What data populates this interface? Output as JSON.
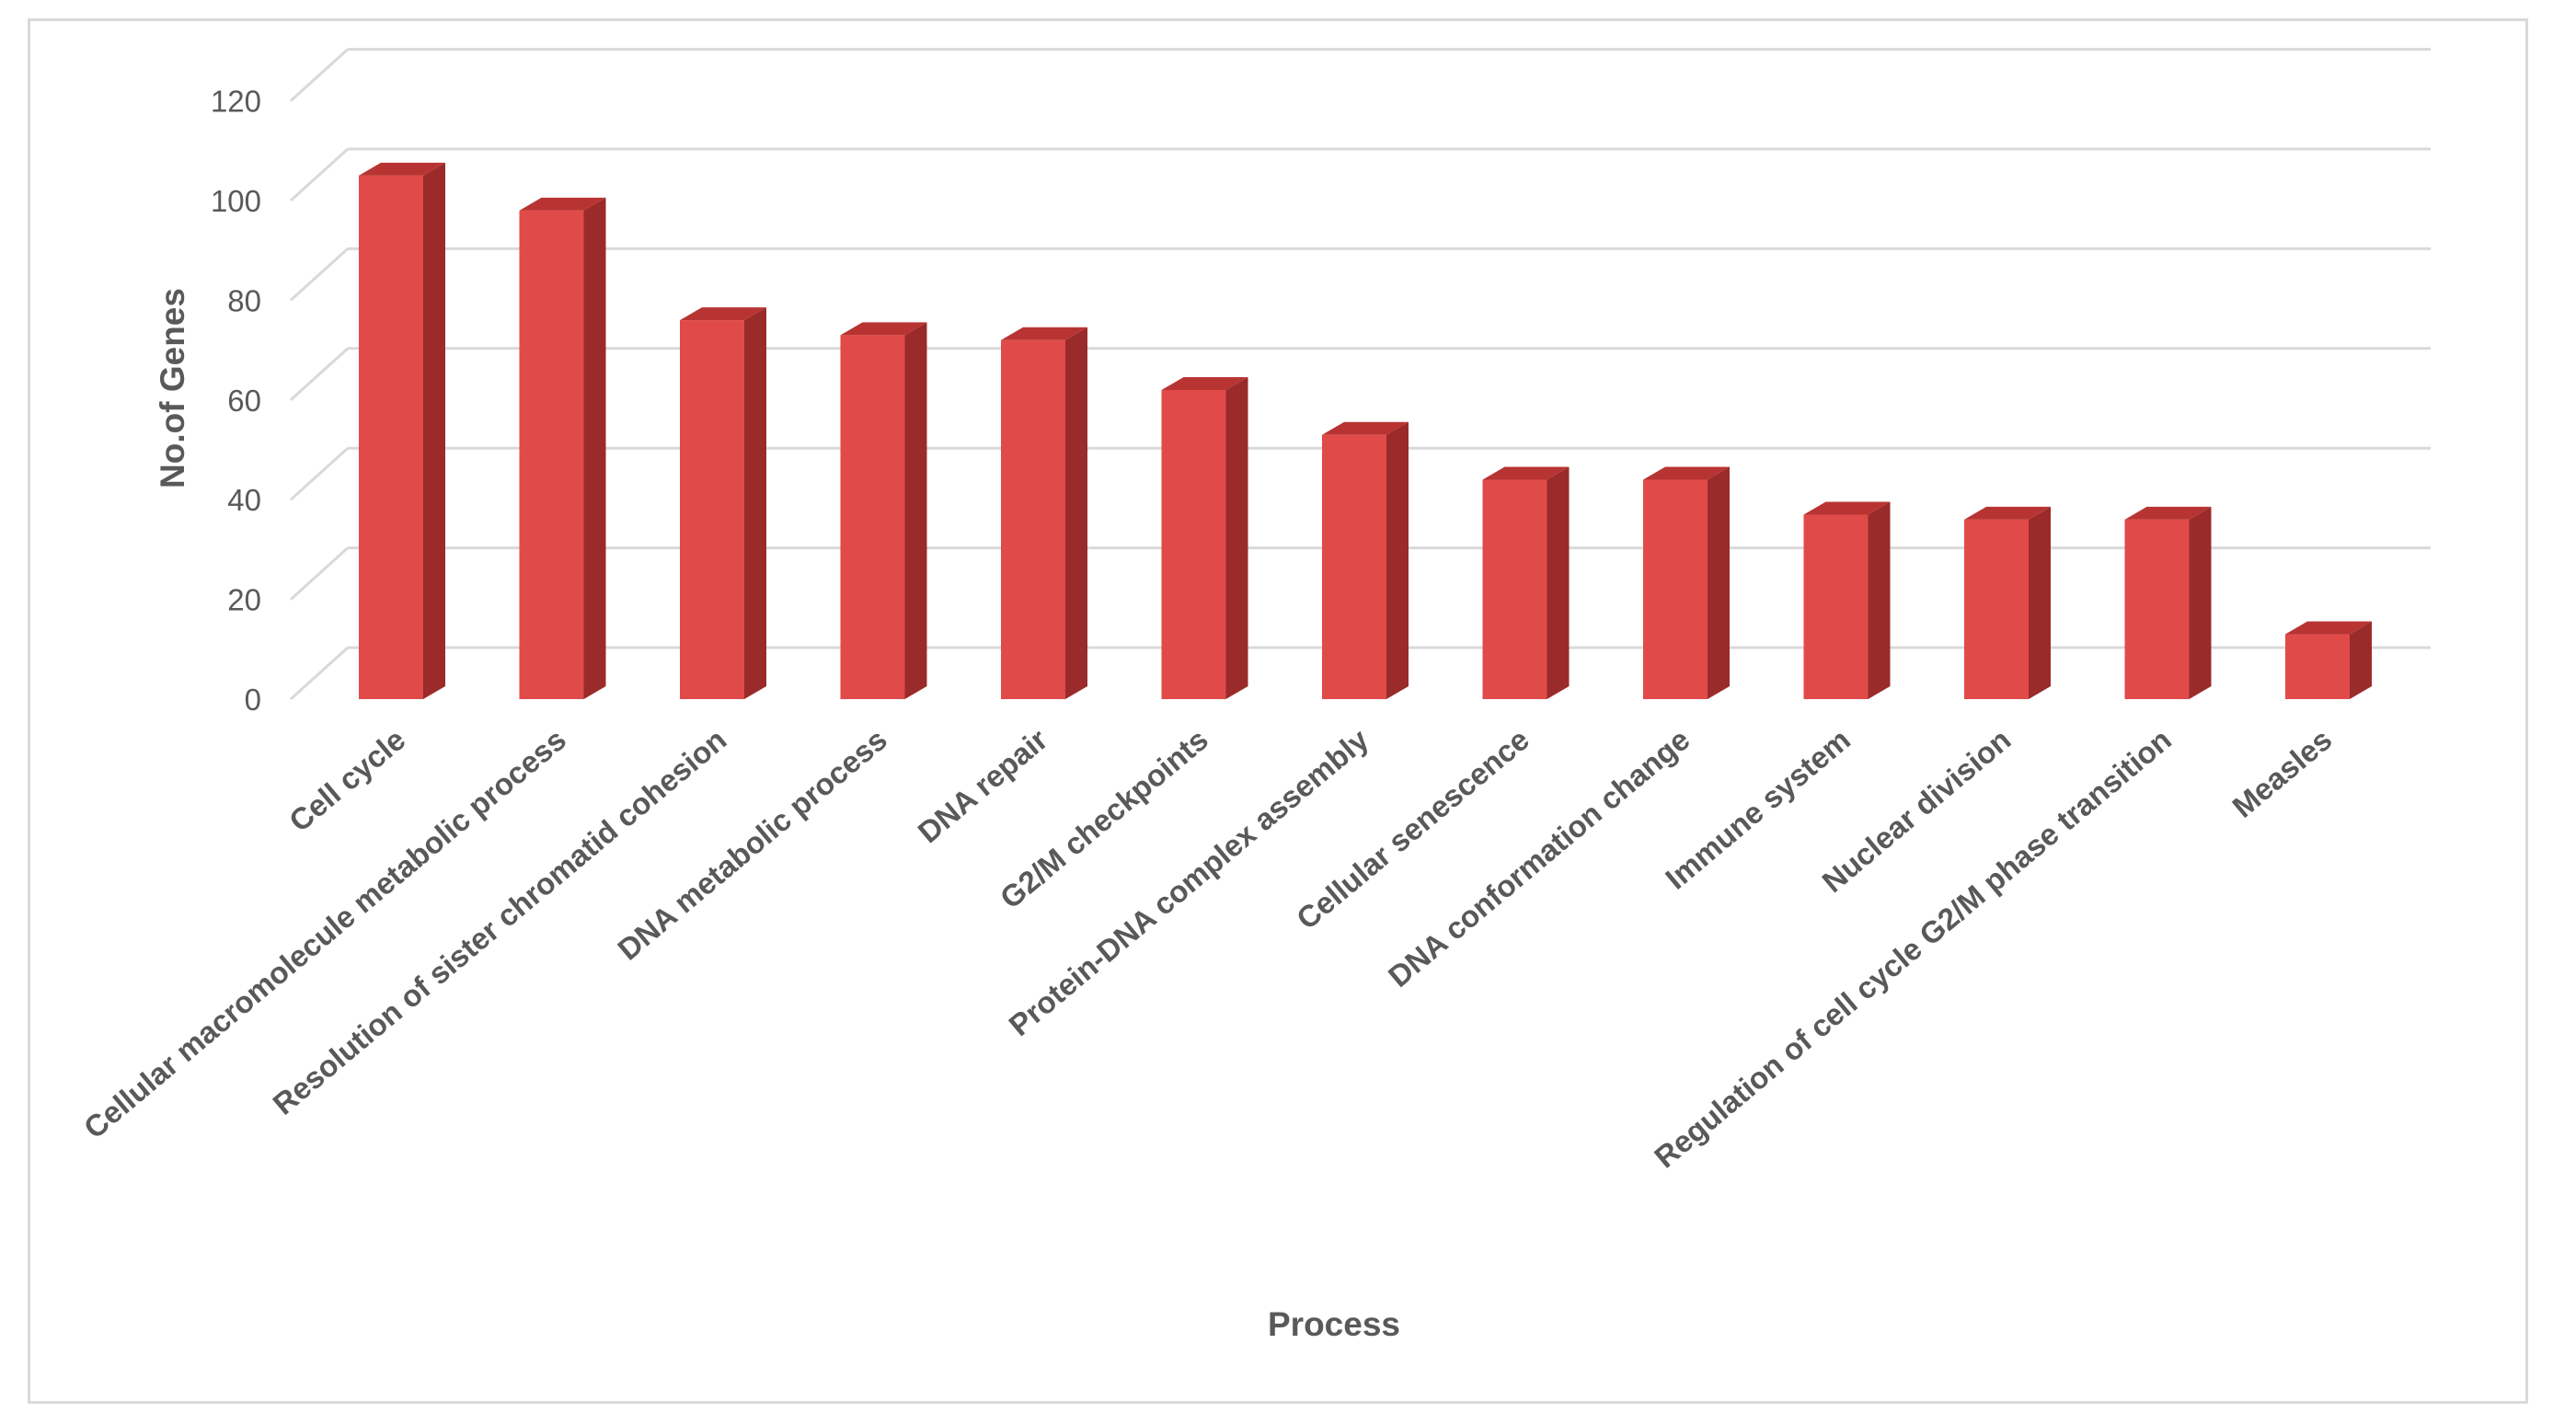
{
  "chart_data": {
    "type": "bar",
    "style": "3d-column",
    "title": "",
    "xlabel": "Process",
    "ylabel": "No.of Genes",
    "ylim": [
      0,
      120
    ],
    "yticks": [
      0,
      20,
      40,
      60,
      80,
      100,
      120
    ],
    "grid": true,
    "legend": "none",
    "categories": [
      "Cell cycle",
      "Cellular  macromolecule metabolic process",
      "Resolution of sister chromatid cohesion",
      "DNA metabolic process",
      "DNA repair",
      "G2/M checkpoints",
      "Protein-DNA complex assembly",
      "Cellular senescence",
      "DNA conformation change",
      "Immune system",
      "Nuclear division",
      "Regulation of cell cycle G2/M phase transition",
      "Measles"
    ],
    "values": [
      105,
      98,
      76,
      73,
      72,
      62,
      53,
      44,
      44,
      37,
      36,
      36,
      13
    ],
    "colors": {
      "bar_front": "#e04b49",
      "bar_side": "#9a2b2a",
      "bar_top": "#b83432",
      "grid": "#d9d9d9",
      "text": "#595959"
    }
  }
}
